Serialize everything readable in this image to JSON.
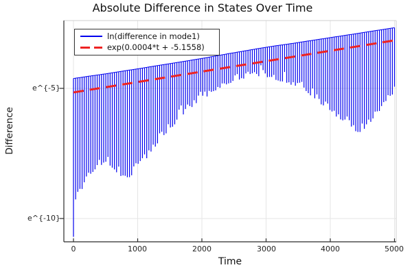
{
  "chart_data": {
    "type": "line",
    "title": "Absolute Difference in States Over Time",
    "xlabel": "Time",
    "ylabel": "Difference",
    "x_ticks": [
      0,
      1000,
      2000,
      3000,
      4000,
      5000
    ],
    "y_ticks": [
      {
        "label": "e^{-5}",
        "ln": -5
      },
      {
        "label": "e^{-10}",
        "ln": -10
      }
    ],
    "xlim": [
      -150,
      5030
    ],
    "ylim_ln": [
      -10.9,
      -2.4
    ],
    "grid": true,
    "legend_position": "top-left",
    "series": [
      {
        "name": "ln(difference in mode1)",
        "type": "oscillation-band",
        "color": "#0000ee",
        "n_spikes": 150,
        "t_range": [
          0,
          5000
        ],
        "envelope_upper_ln": [
          [
            0,
            -4.62
          ],
          [
            500,
            -4.44
          ],
          [
            1000,
            -4.25
          ],
          [
            1500,
            -4.05
          ],
          [
            2000,
            -3.85
          ],
          [
            2500,
            -3.63
          ],
          [
            3000,
            -3.42
          ],
          [
            3500,
            -3.24
          ],
          [
            4000,
            -3.05
          ],
          [
            4500,
            -2.86
          ],
          [
            5000,
            -2.67
          ]
        ],
        "envelope_lower_ln": [
          [
            0,
            -10.7
          ],
          [
            30,
            -9.5
          ],
          [
            100,
            -9.05
          ],
          [
            200,
            -8.6
          ],
          [
            300,
            -8.25
          ],
          [
            400,
            -8.02
          ],
          [
            470,
            -7.88
          ],
          [
            570,
            -7.98
          ],
          [
            700,
            -8.3
          ],
          [
            790,
            -8.5
          ],
          [
            900,
            -8.38
          ],
          [
            1000,
            -8.13
          ],
          [
            1100,
            -7.84
          ],
          [
            1200,
            -7.5
          ],
          [
            1350,
            -7.05
          ],
          [
            1500,
            -6.6
          ],
          [
            1700,
            -6.05
          ],
          [
            1900,
            -5.6
          ],
          [
            2100,
            -5.3
          ],
          [
            2300,
            -4.95
          ],
          [
            2550,
            -4.68
          ],
          [
            2800,
            -4.55
          ],
          [
            3050,
            -4.58
          ],
          [
            3200,
            -4.72
          ],
          [
            3400,
            -4.9
          ],
          [
            3600,
            -5.15
          ],
          [
            3800,
            -5.5
          ],
          [
            4000,
            -5.9
          ],
          [
            4200,
            -6.3
          ],
          [
            4350,
            -6.6
          ],
          [
            4440,
            -6.74
          ],
          [
            4550,
            -6.55
          ],
          [
            4700,
            -6.1
          ],
          [
            4850,
            -5.6
          ],
          [
            4950,
            -5.3
          ],
          [
            5000,
            -5.18
          ]
        ]
      },
      {
        "name": "exp(0.0004*t + -5.1558)",
        "type": "fit-line",
        "style": "dashed",
        "color": "#ee2222",
        "slope": 0.0004,
        "intercept": -5.1558,
        "t_range": [
          0,
          5000
        ]
      }
    ]
  }
}
